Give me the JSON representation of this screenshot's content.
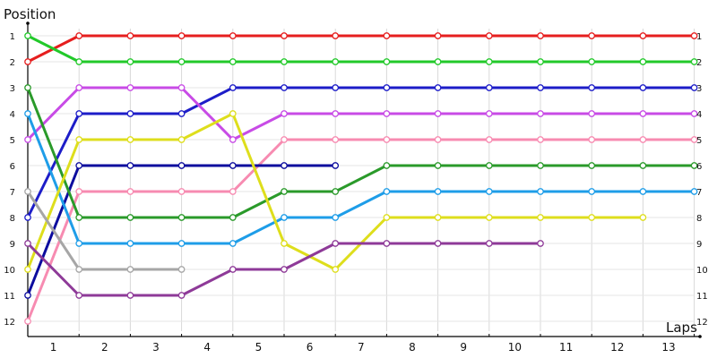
{
  "chart_data": {
    "type": "line",
    "title": "",
    "ylabel": "Position",
    "xlabel": "Laps",
    "x_categories": [
      1,
      2,
      3,
      4,
      5,
      6,
      7,
      8,
      9,
      10,
      11,
      12,
      13
    ],
    "y_ticks": [
      1,
      2,
      3,
      4,
      5,
      6,
      7,
      8,
      9,
      10,
      11,
      12
    ],
    "ylim": [
      1,
      12
    ],
    "y_inverted": true,
    "grid": true,
    "series": [
      {
        "color": "#e61e1e",
        "x": [
          0,
          1,
          2,
          3,
          4,
          5,
          6,
          7,
          8,
          9,
          10,
          11,
          12,
          13
        ],
        "values": [
          2,
          1,
          1,
          1,
          1,
          1,
          1,
          1,
          1,
          1,
          1,
          1,
          1,
          1
        ]
      },
      {
        "color": "#22c92a",
        "x": [
          0,
          1,
          2,
          3,
          4,
          5,
          6,
          7,
          8,
          9,
          10,
          11,
          12,
          13
        ],
        "values": [
          1,
          2,
          2,
          2,
          2,
          2,
          2,
          2,
          2,
          2,
          2,
          2,
          2,
          2
        ]
      },
      {
        "color": "#1d1dc8",
        "x": [
          0,
          1,
          2,
          3,
          4,
          5,
          6,
          7,
          8,
          9,
          10,
          11,
          12,
          13
        ],
        "values": [
          8,
          4,
          4,
          4,
          3,
          3,
          3,
          3,
          3,
          3,
          3,
          3,
          3,
          3
        ]
      },
      {
        "color": "#c84be6",
        "x": [
          0,
          1,
          2,
          3,
          4,
          5,
          6,
          7,
          8,
          9,
          10,
          11,
          12,
          13
        ],
        "values": [
          5,
          3,
          3,
          3,
          5,
          4,
          4,
          4,
          4,
          4,
          4,
          4,
          4,
          4
        ]
      },
      {
        "color": "#f78bb1",
        "x": [
          0,
          1,
          2,
          3,
          4,
          5,
          6,
          7,
          8,
          9,
          10,
          11,
          12,
          13
        ],
        "values": [
          12,
          7,
          7,
          7,
          7,
          5,
          5,
          5,
          5,
          5,
          5,
          5,
          5,
          5
        ]
      },
      {
        "color": "#0c0c9e",
        "x": [
          0,
          1,
          2,
          3,
          4,
          5,
          6
        ],
        "values": [
          11,
          6,
          6,
          6,
          6,
          6,
          6
        ]
      },
      {
        "color": "#2a9a2a",
        "x": [
          0,
          1,
          2,
          3,
          4,
          5,
          6,
          7,
          8,
          9,
          10,
          11,
          12,
          13
        ],
        "values": [
          3,
          8,
          8,
          8,
          8,
          7,
          7,
          6,
          6,
          6,
          6,
          6,
          6,
          6
        ]
      },
      {
        "color": "#1e9de8",
        "x": [
          0,
          1,
          2,
          3,
          4,
          5,
          6,
          7,
          8,
          9,
          10,
          11,
          12,
          13
        ],
        "values": [
          4,
          9,
          9,
          9,
          9,
          8,
          8,
          7,
          7,
          7,
          7,
          7,
          7,
          7
        ]
      },
      {
        "color": "#dede1c",
        "x": [
          0,
          1,
          2,
          3,
          4,
          5,
          6,
          7,
          8,
          9,
          10,
          11,
          12
        ],
        "values": [
          10,
          5,
          5,
          5,
          4,
          9,
          10,
          8,
          8,
          8,
          8,
          8,
          8
        ]
      },
      {
        "color": "#a6a6a6",
        "x": [
          0,
          1,
          2,
          3
        ],
        "values": [
          7,
          10,
          10,
          10
        ]
      },
      {
        "color": "#8e3a98",
        "x": [
          0,
          1,
          2,
          3,
          4,
          5,
          6,
          7,
          8,
          9,
          10
        ],
        "values": [
          9,
          11,
          11,
          11,
          10,
          10,
          9,
          9,
          9,
          9,
          9
        ]
      }
    ]
  }
}
